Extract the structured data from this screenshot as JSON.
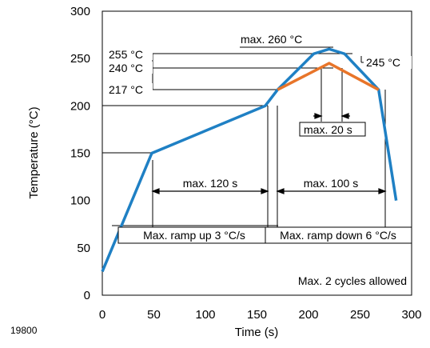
{
  "image_code": "19800",
  "chart_data": {
    "type": "line",
    "xlabel": "Time (s)",
    "ylabel": "Temperature (°C)",
    "xlim": [
      0,
      300
    ],
    "ylim": [
      0,
      300
    ],
    "x_ticks": [
      0,
      50,
      100,
      150,
      200,
      250,
      300
    ],
    "y_ticks": [
      0,
      50,
      100,
      150,
      200,
      250,
      300
    ],
    "grid": false,
    "series": [
      {
        "color": "#1f80c4",
        "points": [
          [
            0,
            25
          ],
          [
            48,
            150
          ],
          [
            158,
            200
          ],
          [
            170,
            217
          ],
          [
            205,
            255
          ],
          [
            220,
            260
          ],
          [
            235,
            255
          ],
          [
            268,
            217
          ],
          [
            285,
            100
          ]
        ]
      },
      {
        "color": "#e8752a",
        "points": [
          [
            170,
            217
          ],
          [
            220,
            245
          ],
          [
            268,
            217
          ]
        ]
      }
    ],
    "temperature_labels": [
      "255 °C",
      "240 °C",
      "217 °C",
      "245 °C"
    ],
    "annotations": {
      "peak_max": "max. 260 °C",
      "time_at_peak": "max. 20 s",
      "preheat_time": "max. 120 s",
      "reflow_time": "max. 100 s",
      "ramp_up": "Max. ramp up 3 °C/s",
      "ramp_down": "Max. ramp down 6 °C/s",
      "cycles": "Max. 2 cycles allowed"
    },
    "colors": {
      "primary": "#1f80c4",
      "secondary": "#e8752a"
    }
  }
}
